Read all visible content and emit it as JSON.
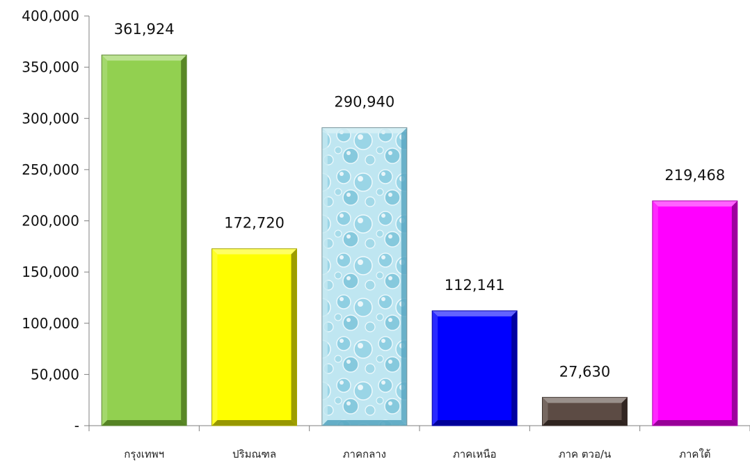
{
  "chart_data": {
    "type": "bar",
    "title": "",
    "xlabel": "",
    "ylabel": "",
    "ylim": [
      0,
      400000
    ],
    "y_ticks": [
      {
        "value": 0,
        "label": "-"
      },
      {
        "value": 50000,
        "label": "50,000"
      },
      {
        "value": 100000,
        "label": "100,000"
      },
      {
        "value": 150000,
        "label": "150,000"
      },
      {
        "value": 200000,
        "label": "200,000"
      },
      {
        "value": 250000,
        "label": "250,000"
      },
      {
        "value": 300000,
        "label": "300,000"
      },
      {
        "value": 350000,
        "label": "350,000"
      },
      {
        "value": 400000,
        "label": "400,000"
      }
    ],
    "categories": [
      "กรุงเทพฯ",
      "ปริมณฑล",
      "ภาคกลาง",
      "ภาคเหนือ",
      "ภาค ตวอ/น",
      "ภาคใต้"
    ],
    "values": [
      361924,
      172720,
      290940,
      112141,
      27630,
      219468
    ],
    "value_labels": [
      "361,924",
      "172,720",
      "290,940",
      "112,141",
      "27,630",
      "219,468"
    ],
    "bar_colors": [
      "#92d050",
      "#ffff00",
      "#b7e3ee",
      "#0000ff",
      "#5c4b44",
      "#ff00ff"
    ],
    "bar_dark_colors": [
      "#4f7a1e",
      "#8c8c00",
      "#5aa7c2",
      "#00008f",
      "#2a201c",
      "#8c008c"
    ],
    "grid": false,
    "legend": "none"
  }
}
